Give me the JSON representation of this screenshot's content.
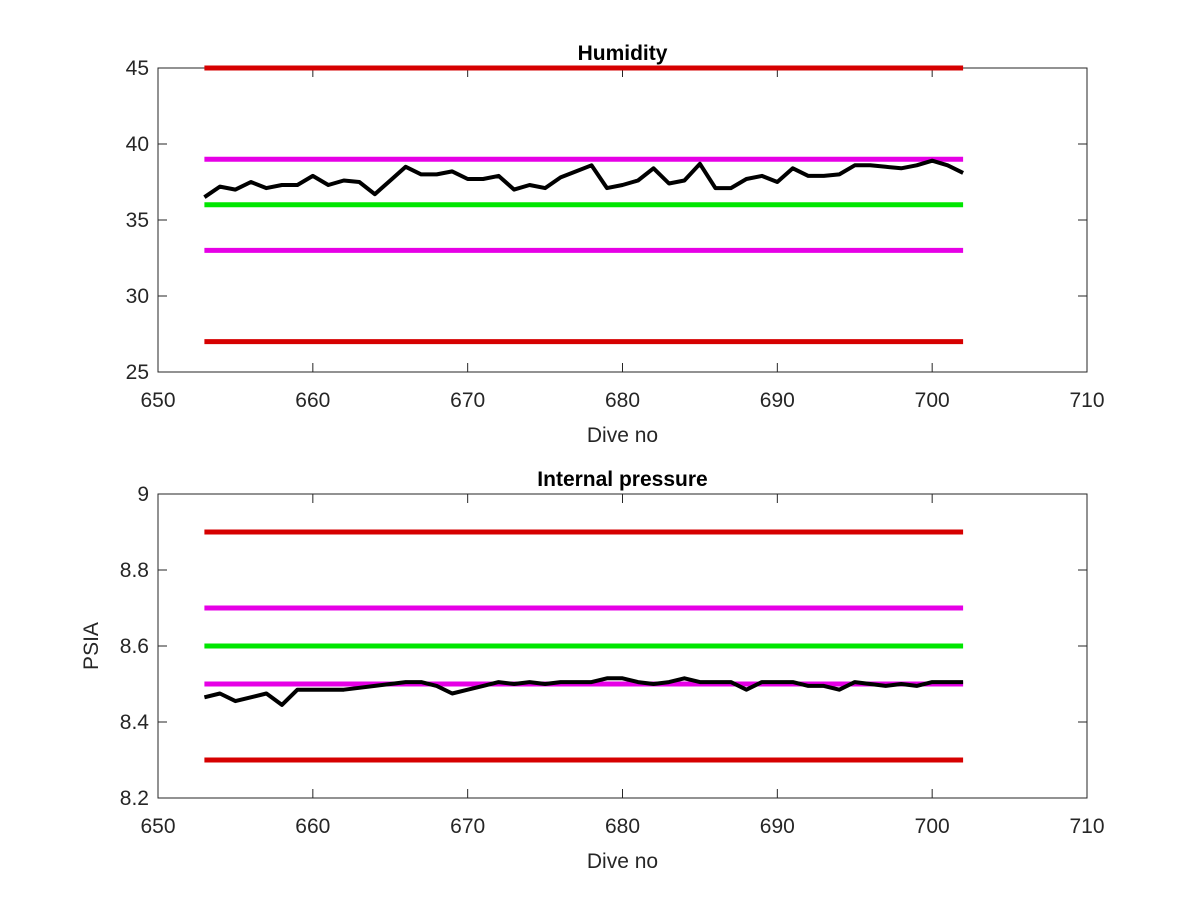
{
  "chart_data": [
    {
      "type": "line",
      "title": "Humidity",
      "xlabel": "Dive no",
      "ylabel": "",
      "xlim": [
        650,
        710
      ],
      "ylim": [
        25,
        45
      ],
      "xticks": [
        650,
        660,
        670,
        680,
        690,
        700,
        710
      ],
      "yticks": [
        25,
        30,
        35,
        40,
        45
      ],
      "grid": false,
      "series": [
        {
          "color": "#000000",
          "x": [
            653,
            654,
            655,
            656,
            657,
            658,
            659,
            660,
            661,
            662,
            663,
            664,
            665,
            666,
            667,
            668,
            669,
            670,
            671,
            672,
            673,
            674,
            675,
            676,
            677,
            678,
            679,
            680,
            681,
            682,
            683,
            684,
            685,
            686,
            687,
            688,
            689,
            690,
            691,
            692,
            693,
            694,
            695,
            696,
            697,
            698,
            699,
            700,
            701,
            702
          ],
          "values": [
            36.5,
            37.2,
            37.0,
            37.5,
            37.1,
            37.3,
            37.3,
            37.9,
            37.3,
            37.6,
            37.5,
            36.7,
            37.6,
            38.5,
            38.0,
            38.0,
            38.2,
            37.7,
            37.7,
            37.9,
            37.0,
            37.3,
            37.1,
            37.8,
            38.2,
            38.6,
            37.1,
            37.3,
            37.6,
            38.4,
            37.4,
            37.6,
            38.7,
            37.1,
            37.1,
            37.7,
            37.9,
            37.5,
            38.4,
            37.9,
            37.9,
            38.0,
            38.6,
            38.6,
            38.5,
            38.4,
            38.6,
            38.9,
            38.6,
            38.1
          ]
        },
        {
          "color": "#d60000",
          "x": [
            653,
            702
          ],
          "values": [
            45,
            45
          ]
        },
        {
          "color": "#e600e6",
          "x": [
            653,
            702
          ],
          "values": [
            39,
            39
          ]
        },
        {
          "color": "#00e600",
          "x": [
            653,
            702
          ],
          "values": [
            36,
            36
          ]
        },
        {
          "color": "#e600e6",
          "x": [
            653,
            702
          ],
          "values": [
            33,
            33
          ]
        },
        {
          "color": "#d60000",
          "x": [
            653,
            702
          ],
          "values": [
            27,
            27
          ]
        }
      ]
    },
    {
      "type": "line",
      "title": "Internal pressure",
      "xlabel": "Dive no",
      "ylabel": "PSIA",
      "xlim": [
        650,
        710
      ],
      "ylim": [
        8.2,
        9
      ],
      "xticks": [
        650,
        660,
        670,
        680,
        690,
        700,
        710
      ],
      "yticks": [
        8.2,
        8.4,
        8.6,
        8.8,
        9
      ],
      "grid": false,
      "series": [
        {
          "color": "#000000",
          "x": [
            653,
            654,
            655,
            656,
            657,
            658,
            659,
            660,
            661,
            662,
            663,
            664,
            665,
            666,
            667,
            668,
            669,
            670,
            671,
            672,
            673,
            674,
            675,
            676,
            677,
            678,
            679,
            680,
            681,
            682,
            683,
            684,
            685,
            686,
            687,
            688,
            689,
            690,
            691,
            692,
            693,
            694,
            695,
            696,
            697,
            698,
            699,
            700,
            701,
            702
          ],
          "values": [
            8.465,
            8.475,
            8.455,
            8.465,
            8.475,
            8.445,
            8.485,
            8.485,
            8.485,
            8.485,
            8.49,
            8.495,
            8.5,
            8.505,
            8.505,
            8.495,
            8.475,
            8.485,
            8.495,
            8.505,
            8.5,
            8.505,
            8.5,
            8.505,
            8.505,
            8.505,
            8.515,
            8.515,
            8.505,
            8.5,
            8.505,
            8.515,
            8.505,
            8.505,
            8.505,
            8.485,
            8.505,
            8.505,
            8.505,
            8.495,
            8.495,
            8.485,
            8.505,
            8.5,
            8.495,
            8.5,
            8.495,
            8.505,
            8.505,
            8.505
          ]
        },
        {
          "color": "#d60000",
          "x": [
            653,
            702
          ],
          "values": [
            8.9,
            8.9
          ]
        },
        {
          "color": "#e600e6",
          "x": [
            653,
            702
          ],
          "values": [
            8.7,
            8.7
          ]
        },
        {
          "color": "#00e600",
          "x": [
            653,
            702
          ],
          "values": [
            8.6,
            8.6
          ]
        },
        {
          "color": "#e600e6",
          "x": [
            653,
            702
          ],
          "values": [
            8.5,
            8.5
          ]
        },
        {
          "color": "#d60000",
          "x": [
            653,
            702
          ],
          "values": [
            8.3,
            8.3
          ]
        }
      ]
    }
  ]
}
